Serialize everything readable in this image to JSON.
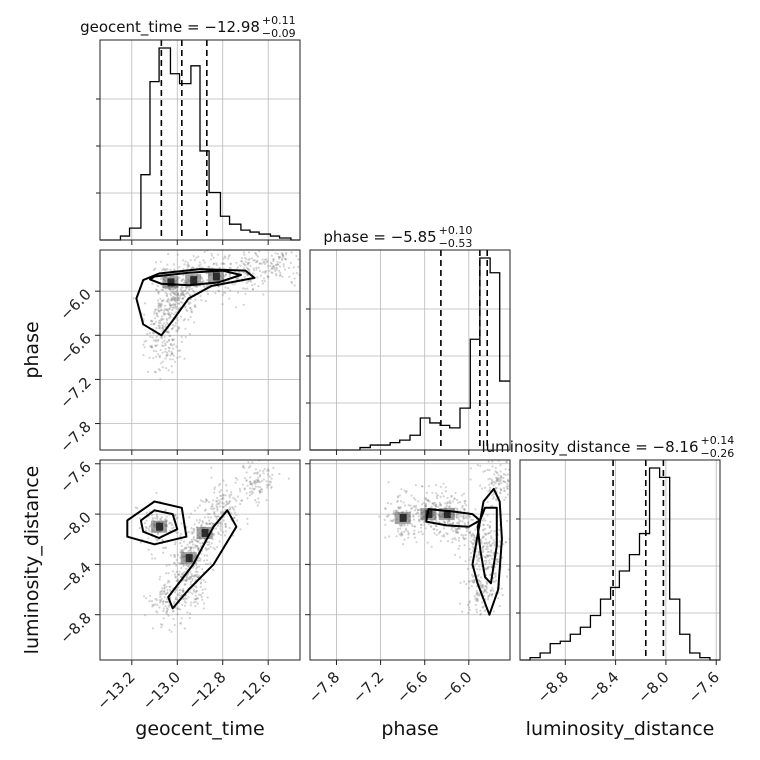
{
  "chart_data": {
    "type": "corner",
    "params": [
      "geocent_time",
      "phase",
      "luminosity_distance"
    ],
    "labels": {
      "geocent_time": "geocent_time",
      "phase": "phase",
      "luminosity_distance": "luminosity_distance"
    },
    "ranges": {
      "geocent_time": [
        -13.34,
        -12.46
      ],
      "phase": [
        -8.16,
        -5.44
      ],
      "luminosity_distance": [
        -9.16,
        -7.57
      ]
    },
    "ticks": {
      "geocent_time": [
        -13.2,
        -13.0,
        -12.8,
        -12.6
      ],
      "phase": [
        -7.8,
        -7.2,
        -6.6,
        -6.0
      ],
      "luminosity_distance": [
        -8.8,
        -8.4,
        -8.0,
        -7.6
      ]
    },
    "tick_labels": {
      "geocent_time": [
        "−13.2",
        "−13.0",
        "−12.8",
        "−12.6"
      ],
      "phase": [
        "−7.8",
        "−7.2",
        "−6.6",
        "−6.0"
      ],
      "luminosity_distance": [
        "−8.8",
        "−8.4",
        "−8.0",
        "−7.6"
      ]
    },
    "titles": [
      {
        "name": "geocent_time",
        "median": "−12.98",
        "plus": "+0.11",
        "minus": "−0.09"
      },
      {
        "name": "phase",
        "median": "−5.85",
        "plus": "+0.10",
        "minus": "−0.53"
      },
      {
        "name": "luminosity_distance",
        "median": "−8.16",
        "plus": "+0.14",
        "minus": "−0.26"
      }
    ],
    "quantiles": {
      "geocent_time": [
        -13.07,
        -12.98,
        -12.87
      ],
      "phase": [
        -6.38,
        -5.85,
        -5.75
      ],
      "luminosity_distance": [
        -8.42,
        -8.16,
        -8.02
      ]
    },
    "histograms": {
      "geocent_time": {
        "edges": [
          -13.34,
          -13.3,
          -13.25,
          -13.21,
          -13.16,
          -13.12,
          -13.08,
          -13.03,
          -12.99,
          -12.94,
          -12.9,
          -12.86,
          -12.81,
          -12.77,
          -12.72,
          -12.68,
          -12.64,
          -12.59,
          -12.55,
          -12.5,
          -12.46
        ],
        "counts": [
          0,
          0,
          2,
          6,
          33,
          80,
          97,
          84,
          79,
          88,
          45,
          24,
          12,
          8,
          5,
          4,
          3,
          2,
          1,
          0
        ]
      },
      "phase": {
        "edges": [
          -8.16,
          -8.02,
          -7.89,
          -7.75,
          -7.62,
          -7.48,
          -7.34,
          -7.21,
          -7.07,
          -6.94,
          -6.8,
          -6.66,
          -6.53,
          -6.39,
          -6.26,
          -6.12,
          -5.98,
          -5.85,
          -5.71,
          -5.58,
          -5.44
        ],
        "counts": [
          0,
          0,
          0,
          0,
          0,
          1,
          2,
          2,
          3,
          4,
          6,
          13,
          11,
          10,
          9,
          17,
          45,
          78,
          72,
          28
        ]
      },
      "luminosity_distance": {
        "edges": [
          -9.16,
          -9.08,
          -9.0,
          -8.92,
          -8.84,
          -8.76,
          -8.68,
          -8.6,
          -8.52,
          -8.44,
          -8.37,
          -8.29,
          -8.21,
          -8.13,
          -8.05,
          -7.97,
          -7.89,
          -7.81,
          -7.73,
          -7.65,
          -7.57
        ],
        "counts": [
          0,
          1,
          3,
          7,
          8,
          11,
          14,
          19,
          26,
          31,
          38,
          45,
          54,
          82,
          78,
          26,
          11,
          3,
          1,
          0
        ]
      }
    },
    "scatter_centers": {
      "geocent_time_vs_phase": [
        [
          -13.03,
          -5.88
        ],
        [
          -12.93,
          -5.85
        ],
        [
          -12.83,
          -5.8
        ],
        [
          -12.7,
          -5.72
        ],
        [
          -12.55,
          -5.62
        ],
        [
          -13.06,
          -6.3
        ],
        [
          -13.06,
          -6.75
        ],
        [
          -13.0,
          -6.1
        ]
      ],
      "geocent_time_vs_luminosity_distance": [
        [
          -13.08,
          -8.1
        ],
        [
          -12.95,
          -8.35
        ],
        [
          -12.88,
          -8.15
        ],
        [
          -12.8,
          -7.95
        ],
        [
          -12.65,
          -7.75
        ],
        [
          -13.04,
          -8.7
        ],
        [
          -12.95,
          -8.55
        ]
      ],
      "phase_vs_luminosity_distance": [
        [
          -6.3,
          -8.0
        ],
        [
          -6.55,
          -8.0
        ],
        [
          -6.9,
          -8.03
        ],
        [
          -5.8,
          -8.2
        ],
        [
          -5.75,
          -8.4
        ],
        [
          -5.82,
          -8.6
        ],
        [
          -5.6,
          -7.75
        ],
        [
          -6.1,
          -8.08
        ]
      ]
    },
    "contours": {
      "geocent_time_vs_phase": [
        [
          [
            -13.1,
            -5.8
          ],
          [
            -12.95,
            -5.75
          ],
          [
            -12.8,
            -5.72
          ],
          [
            -12.72,
            -5.78
          ],
          [
            -12.82,
            -5.88
          ],
          [
            -12.95,
            -5.92
          ],
          [
            -13.07,
            -5.9
          ],
          [
            -13.12,
            -5.84
          ]
        ],
        [
          [
            -13.08,
            -5.76
          ],
          [
            -12.9,
            -5.7
          ],
          [
            -12.7,
            -5.72
          ],
          [
            -12.66,
            -5.82
          ],
          [
            -12.85,
            -5.93
          ],
          [
            -12.95,
            -6.1
          ],
          [
            -13.02,
            -6.4
          ],
          [
            -13.07,
            -6.6
          ],
          [
            -13.15,
            -6.45
          ],
          [
            -13.18,
            -6.1
          ],
          [
            -13.15,
            -5.85
          ]
        ]
      ],
      "geocent_time_vs_luminosity_distance": [
        [
          [
            -13.16,
            -8.05
          ],
          [
            -13.1,
            -7.97
          ],
          [
            -13.02,
            -8.0
          ],
          [
            -13.0,
            -8.12
          ],
          [
            -13.08,
            -8.19
          ],
          [
            -13.15,
            -8.14
          ]
        ],
        [
          [
            -13.22,
            -8.05
          ],
          [
            -13.1,
            -7.9
          ],
          [
            -12.98,
            -7.95
          ],
          [
            -12.96,
            -8.18
          ],
          [
            -13.1,
            -8.24
          ],
          [
            -13.22,
            -8.18
          ]
        ],
        [
          [
            -13.04,
            -8.66
          ],
          [
            -12.93,
            -8.4
          ],
          [
            -12.84,
            -8.1
          ],
          [
            -12.78,
            -7.97
          ],
          [
            -12.74,
            -8.1
          ],
          [
            -12.84,
            -8.4
          ],
          [
            -12.95,
            -8.6
          ],
          [
            -13.02,
            -8.75
          ]
        ]
      ],
      "phase_vs_luminosity_distance": [
        [
          [
            -6.55,
            -7.96
          ],
          [
            -6.2,
            -7.98
          ],
          [
            -5.95,
            -8.0
          ],
          [
            -5.85,
            -8.05
          ],
          [
            -6.0,
            -8.1
          ],
          [
            -6.3,
            -8.09
          ],
          [
            -6.58,
            -8.06
          ]
        ],
        [
          [
            -5.88,
            -8.1
          ],
          [
            -5.78,
            -7.95
          ],
          [
            -5.62,
            -7.95
          ],
          [
            -5.62,
            -8.25
          ],
          [
            -5.7,
            -8.55
          ],
          [
            -5.78,
            -8.5
          ],
          [
            -5.84,
            -8.3
          ]
        ],
        [
          [
            -5.95,
            -8.4
          ],
          [
            -5.88,
            -8.55
          ],
          [
            -5.72,
            -8.8
          ],
          [
            -5.6,
            -8.6
          ],
          [
            -5.55,
            -8.2
          ],
          [
            -5.58,
            -7.9
          ],
          [
            -5.66,
            -7.8
          ],
          [
            -5.8,
            -7.9
          ]
        ]
      ]
    },
    "grid": true,
    "colors": {
      "line": "#000000",
      "quantile": "#000000",
      "grid": "#b0b0b0",
      "points": "#808080"
    }
  }
}
